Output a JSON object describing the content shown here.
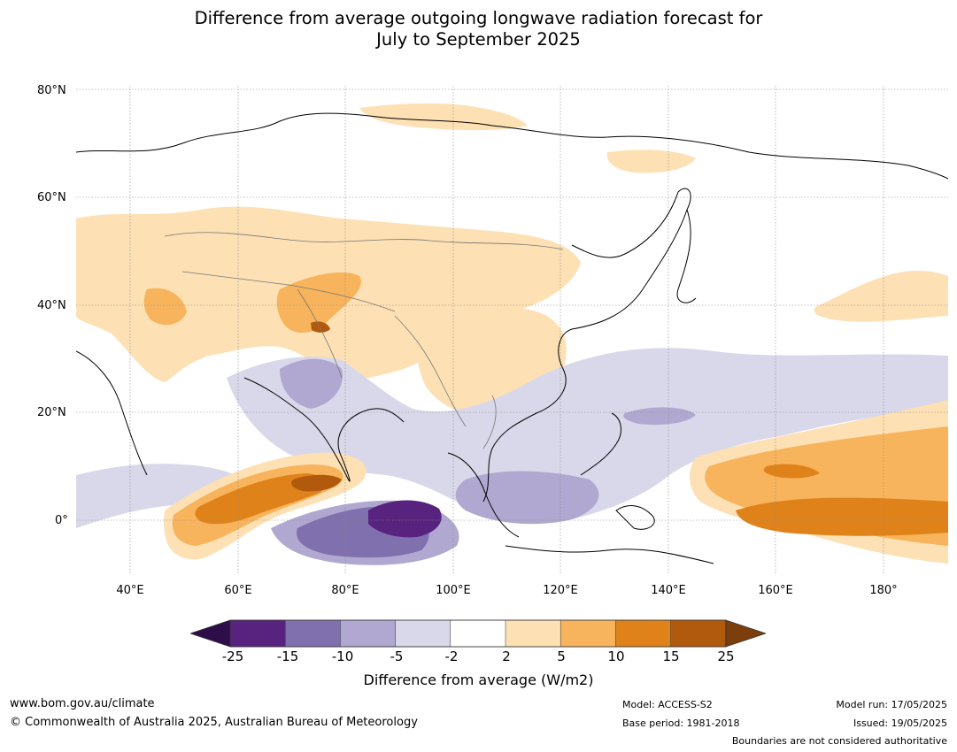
{
  "title": {
    "line1": "Difference from average outgoing longwave radiation forecast for",
    "line2": "July to September 2025"
  },
  "map": {
    "lat_labels": [
      "80°N",
      "60°N",
      "40°N",
      "20°N",
      "0°"
    ],
    "lon_labels": [
      "40°E",
      "60°E",
      "80°E",
      "100°E",
      "120°E",
      "140°E",
      "160°E",
      "180°"
    ]
  },
  "colorbar": {
    "ticks": [
      "-25",
      "-15",
      "-10",
      "-5",
      "-2",
      "2",
      "5",
      "10",
      "15",
      "25"
    ],
    "colors": [
      "#2d0d4a",
      "#57237f",
      "#8070ad",
      "#b0a8d0",
      "#d9d8ea",
      "#ffffff",
      "#fde0b3",
      "#f8b45c",
      "#e0821a",
      "#b15a0e",
      "#7c3e0b"
    ],
    "title": "Difference from average (W/m2)"
  },
  "footer": {
    "website": "www.bom.gov.au/climate",
    "copyright": "© Commonwealth of Australia 2025, Australian Bureau of Meteorology",
    "model": "Model: ACCESS-S2",
    "base_period": "Base period: 1981-2018",
    "model_run": "Model run: 17/05/2025",
    "issued": "Issued: 19/05/2025",
    "disclaimer": "Boundaries are not considered authoritative"
  }
}
